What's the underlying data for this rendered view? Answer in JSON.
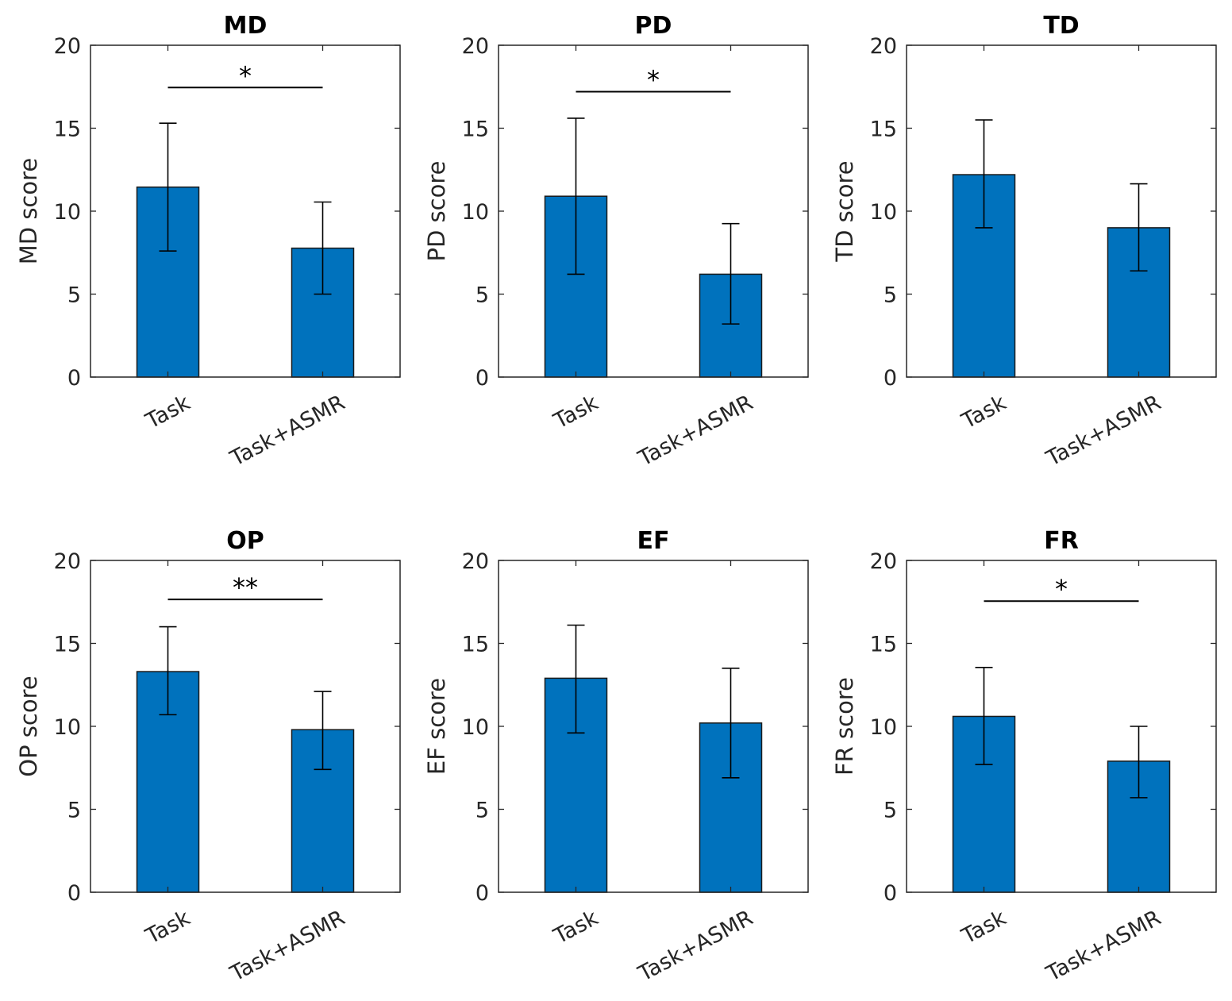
{
  "colors": {
    "bar": "#0072BD",
    "axis": "#262626"
  },
  "chart_data": [
    {
      "type": "bar",
      "title": "MD",
      "ylabel": "MD score",
      "categories": [
        "Task",
        "Task+ASMR"
      ],
      "values": [
        11.45,
        7.77
      ],
      "err_low": [
        7.6,
        5.0
      ],
      "err_high": [
        15.3,
        10.55
      ],
      "ylim": [
        0,
        20
      ],
      "yticks": [
        "0",
        "5",
        "10",
        "15",
        "20"
      ],
      "significance": {
        "label": "*",
        "level": 17.45
      }
    },
    {
      "type": "bar",
      "title": "PD",
      "ylabel": "PD score",
      "categories": [
        "Task",
        "Task+ASMR"
      ],
      "values": [
        10.9,
        6.2
      ],
      "err_low": [
        6.2,
        3.2
      ],
      "err_high": [
        15.6,
        9.25
      ],
      "ylim": [
        0,
        20
      ],
      "yticks": [
        "0",
        "5",
        "10",
        "15",
        "20"
      ],
      "significance": {
        "label": "*",
        "level": 17.2
      }
    },
    {
      "type": "bar",
      "title": "TD",
      "ylabel": "TD score",
      "categories": [
        "Task",
        "Task+ASMR"
      ],
      "values": [
        12.2,
        9.0
      ],
      "err_low": [
        9.0,
        6.4
      ],
      "err_high": [
        15.5,
        11.65
      ],
      "ylim": [
        0,
        20
      ],
      "yticks": [
        "0",
        "5",
        "10",
        "15",
        "20"
      ],
      "significance": null
    },
    {
      "type": "bar",
      "title": "OP",
      "ylabel": "OP score",
      "categories": [
        "Task",
        "Task+ASMR"
      ],
      "values": [
        13.3,
        9.8
      ],
      "err_low": [
        10.7,
        7.4
      ],
      "err_high": [
        16.0,
        12.1
      ],
      "ylim": [
        0,
        20
      ],
      "yticks": [
        "0",
        "5",
        "10",
        "15",
        "20"
      ],
      "significance": {
        "label": "**",
        "level": 17.65
      }
    },
    {
      "type": "bar",
      "title": "EF",
      "ylabel": "EF score",
      "categories": [
        "Task",
        "Task+ASMR"
      ],
      "values": [
        12.9,
        10.2
      ],
      "err_low": [
        9.6,
        6.9
      ],
      "err_high": [
        16.1,
        13.5
      ],
      "ylim": [
        0,
        20
      ],
      "yticks": [
        "0",
        "5",
        "10",
        "15",
        "20"
      ],
      "significance": null
    },
    {
      "type": "bar",
      "title": "FR",
      "ylabel": "FR score",
      "categories": [
        "Task",
        "Task+ASMR"
      ],
      "values": [
        10.6,
        7.9
      ],
      "err_low": [
        7.7,
        5.7
      ],
      "err_high": [
        13.55,
        10.0
      ],
      "ylim": [
        0,
        20
      ],
      "yticks": [
        "0",
        "5",
        "10",
        "15",
        "20"
      ],
      "significance": {
        "label": "*",
        "level": 17.55
      }
    }
  ]
}
